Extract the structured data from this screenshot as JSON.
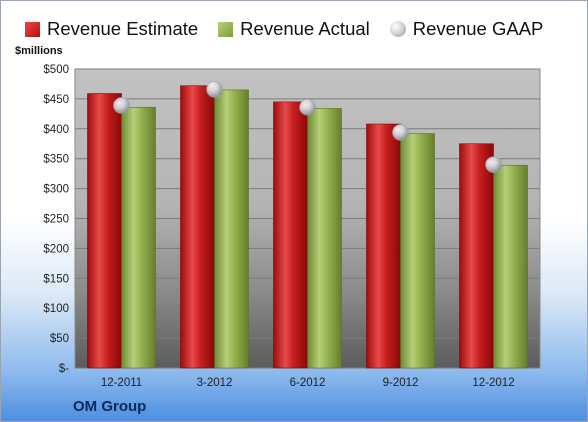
{
  "legend": {
    "estimate": "Revenue Estimate",
    "actual": "Revenue Actual",
    "gaap": "Revenue GAAP"
  },
  "unit_label": "$millions",
  "company": "OM Group",
  "colors": {
    "estimate": "#c41e1e",
    "actual": "#94b04e",
    "gaap": "#b8bec6",
    "plot_bg": "#b5b5b5"
  },
  "chart_data": {
    "type": "bar",
    "categories": [
      "12-2011",
      "3-2012",
      "6-2012",
      "9-2012",
      "12-2012"
    ],
    "series": [
      {
        "name": "Revenue Estimate",
        "values": [
          459,
          472,
          445,
          408,
          375
        ]
      },
      {
        "name": "Revenue Actual",
        "values": [
          436,
          465,
          434,
          392,
          339
        ]
      },
      {
        "name": "Revenue GAAP",
        "values": [
          439,
          466,
          436,
          394,
          340
        ]
      }
    ],
    "ylim": [
      0,
      500
    ],
    "ytick_labels": [
      "$-",
      "$50",
      "$100",
      "$150",
      "$200",
      "$250",
      "$300",
      "$350",
      "$400",
      "$450",
      "$500"
    ],
    "ylabel": "$millions",
    "grid": true,
    "legend_position": "top"
  }
}
